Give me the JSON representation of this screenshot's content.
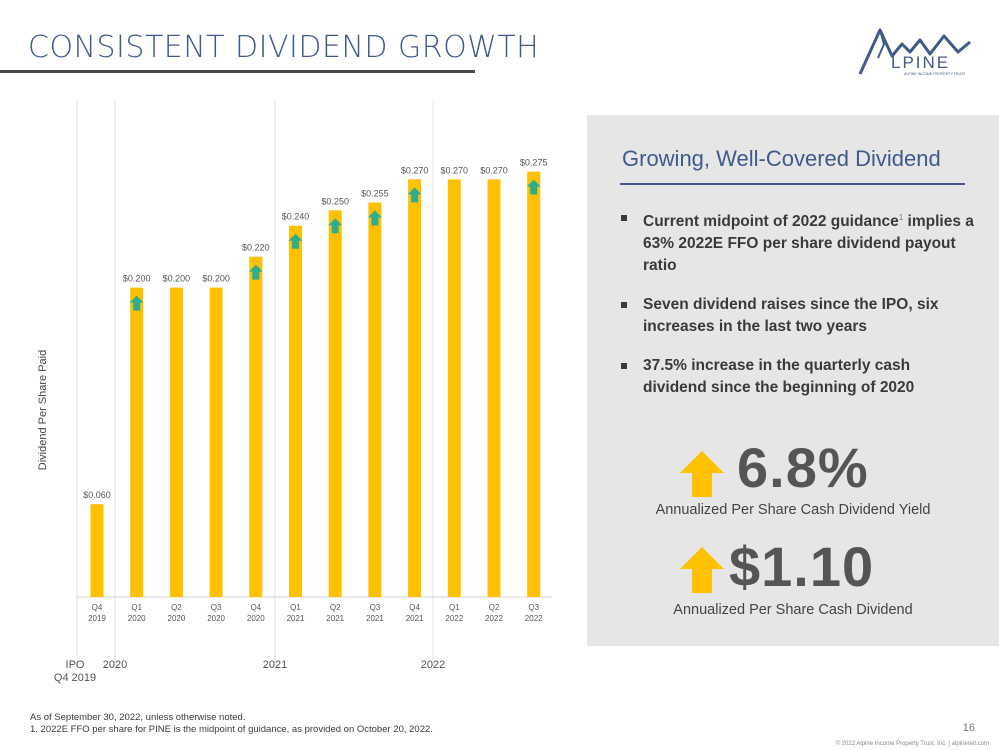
{
  "header": {
    "title": "CONSISTENT DIVIDEND GROWTH",
    "logo_text": "LPINE",
    "logo_subtext": "ALPINE INCOME PROPERTY TRUST"
  },
  "colors": {
    "bar": "#FFC000",
    "arrow_green": "#2EAD8E",
    "accent": "#3F5A8A",
    "stat_arrow": "#FFC000"
  },
  "chart_data": {
    "type": "bar",
    "ylabel": "Dividend Per Share Paid",
    "categories": [
      "Q4 2019",
      "Q1 2020",
      "Q2 2020",
      "Q3 2020",
      "Q4 2020",
      "Q1 2021",
      "Q2 2021",
      "Q3 2021",
      "Q4 2021",
      "Q1 2022",
      "Q2 2022",
      "Q3 2022"
    ],
    "tick_line1": [
      "Q4",
      "Q1",
      "Q2",
      "Q3",
      "Q4",
      "Q1",
      "Q2",
      "Q3",
      "Q4",
      "Q1",
      "Q2",
      "Q3"
    ],
    "tick_line2": [
      "2019",
      "2020",
      "2020",
      "2020",
      "2020",
      "2021",
      "2021",
      "2021",
      "2021",
      "2022",
      "2022",
      "2022"
    ],
    "values": [
      0.06,
      0.2,
      0.2,
      0.2,
      0.22,
      0.24,
      0.25,
      0.255,
      0.27,
      0.27,
      0.27,
      0.275
    ],
    "value_labels": [
      "$0.060",
      "$0.200",
      "$0.200",
      "$0.200",
      "$0.220",
      "$0.240",
      "$0.250",
      "$0.255",
      "$0.270",
      "$0.270",
      "$0.270",
      "$0.275"
    ],
    "increase_markers": [
      false,
      true,
      false,
      false,
      true,
      true,
      true,
      true,
      true,
      false,
      false,
      true
    ],
    "ylim": [
      0,
      0.3
    ],
    "grid": false,
    "year_groups": [
      {
        "label": "IPO",
        "sublabel": "Q4 2019"
      },
      {
        "label": "2020"
      },
      {
        "label": "2021"
      },
      {
        "label": "2022"
      }
    ]
  },
  "panel": {
    "title": "Growing, Well-Covered Dividend",
    "bullets": [
      {
        "text": "Current midpoint of 2022 guidance",
        "footnote": "1",
        "text2": "implies a 63% 2022E FFO per share dividend payout ratio"
      },
      {
        "text": "Seven dividend raises since the IPO, six increases in the last two years"
      },
      {
        "text": "37.5% increase in the quarterly cash dividend since the beginning of 2020"
      }
    ],
    "stats": [
      {
        "value": "6.8%",
        "label": "Annualized Per Share Cash Dividend Yield"
      },
      {
        "value": "$1.10",
        "label": "Annualized Per Share Cash Dividend"
      }
    ]
  },
  "footer": {
    "note1": "As of September 30, 2022, unless otherwise noted.",
    "note2": "1.    2022E FFO per share for PINE is the midpoint of guidance, as provided on October 20, 2022.",
    "page_number": "16",
    "copyright": "© 2022 Alpine Income Property Trust, Inc.  |  alpinereit.com"
  }
}
